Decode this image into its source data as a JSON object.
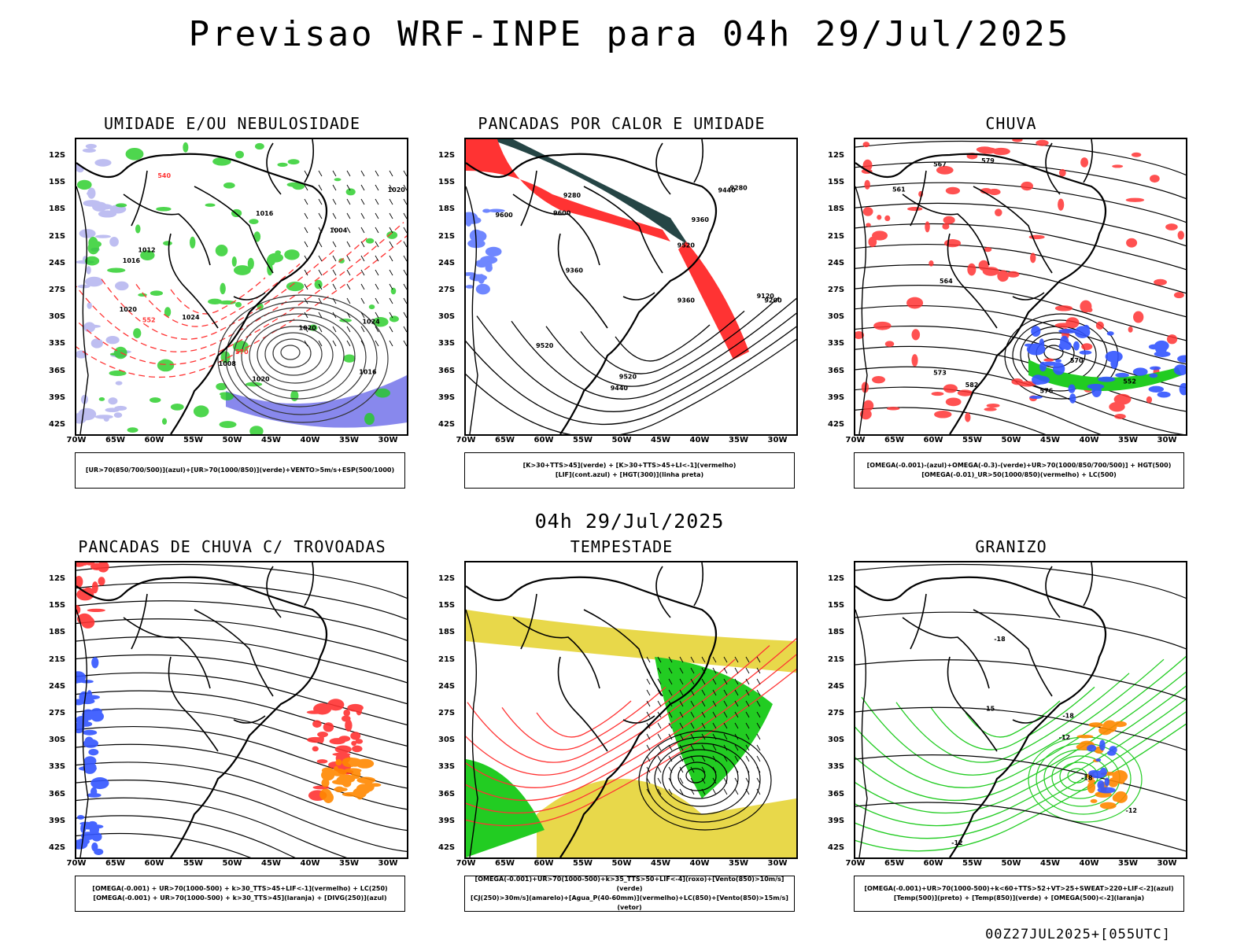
{
  "header": {
    "title": "Previsao WRF-INPE  para 04h 29/Jul/2025"
  },
  "mid_date": "04h 29/Jul/2025",
  "footer": "00Z27JUL2025+[055UTC]",
  "axes": {
    "lat_labels": [
      "12S",
      "15S",
      "18S",
      "21S",
      "24S",
      "27S",
      "30S",
      "33S",
      "36S",
      "39S",
      "42S"
    ],
    "lon_labels": [
      "70W",
      "65W",
      "60W",
      "55W",
      "50W",
      "45W",
      "40W",
      "35W",
      "30W"
    ]
  },
  "panels": [
    {
      "title": "UMIDADE E/OU NEBULOSIDADE",
      "legend": [
        "[UR>70(850/700/500)](azul)+[UR>70(1000/850)](verde)+VENTO>5m/s+ESP(500/1000)"
      ]
    },
    {
      "title": "PANCADAS POR CALOR E UMIDADE",
      "legend": [
        "[K>30+TTS>45](verde) + [K>30+TTS>45+LI<-1](vermelho)",
        "[LIF](cont.azul) + [HGT(300)](linha preta)"
      ]
    },
    {
      "title": "CHUVA",
      "legend": [
        "[OMEGA(-0.001)-(azul)+OMEGA(-0.3)-(verde)+UR>70(1000/850/700/500)] + HGT(500)",
        "[OMEGA(-0.01)_UR>50(1000/850)(vermelho) + LC(500)"
      ]
    },
    {
      "title": "PANCADAS DE CHUVA C/ TROVOADAS",
      "legend": [
        "[OMEGA(-0.001) + UR>70(1000-500) + k>30_TTS>45+LIF<-1](vermelho) + LC(250)",
        "[OMEGA(-0.001) + UR>70(1000-500) + k>30_TTS>45](laranja) + [DIVG(250)](azul)"
      ]
    },
    {
      "title": "TEMPESTADE",
      "legend": [
        "[OMEGA(-0.001)+UR>70(1000-500)+k>35_TTS>50+LIF<-4](roxo)+[Vento(850)>10m/s](verde)",
        "[CJ(250)>30m/s](amarelo)+[Agua_P(40-60mm)](vermelho)+LC(850)+[Vento(850)>15m/s](vetor)"
      ]
    },
    {
      "title": "GRANIZO",
      "legend": [
        "[OMEGA(-0.001)+UR>70(1000-500)+k<60+TTS>52+VT>25+SWEAT>220+LIF<-2](azul)",
        "[Temp(500)](preto) + [Temp(850)](verde) + [OMEGA(500)<-2](laranja)"
      ]
    }
  ],
  "map_labels": {
    "p1": [
      "1016",
      "1020",
      "1024",
      "1020",
      "1012",
      "1008",
      "1004",
      "1016",
      "1020",
      "1024",
      "1016",
      "1020",
      "570",
      "540",
      "552"
    ],
    "p2": [
      "9600",
      "9600",
      "9520",
      "9520",
      "9440",
      "9440",
      "9360",
      "9360",
      "9280",
      "9200",
      "9120",
      "9280",
      "9360",
      "9520"
    ],
    "p3": [
      "582",
      "576",
      "573",
      "570",
      "567",
      "561",
      "564",
      "552",
      "579"
    ],
    "p6": [
      "-12",
      "-12",
      "-18",
      "-15",
      "-18",
      "-18",
      "-12"
    ]
  },
  "colors": {
    "blue": "#3355ff",
    "green": "#22cc22",
    "red": "#ff3333",
    "orange": "#ff8800",
    "yellow": "#e8d84a",
    "dark": "#254545",
    "lavender": "#b8b8f0"
  }
}
